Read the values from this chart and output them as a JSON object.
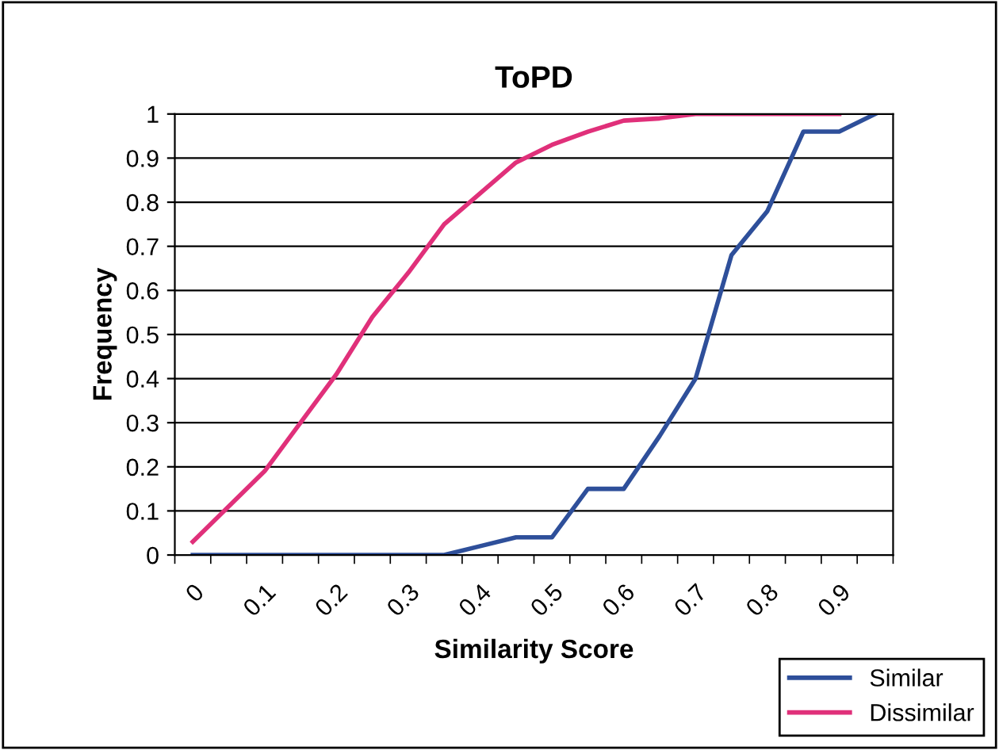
{
  "chart_data": {
    "type": "line",
    "title": "ToPD",
    "xlabel": "Similarity Score",
    "ylabel": "Frequency",
    "categories": [
      "0",
      null,
      "0.1",
      null,
      "0.2",
      null,
      "0.3",
      null,
      "0.4",
      null,
      "0.5",
      null,
      "0.6",
      null,
      "0.7",
      null,
      "0.8",
      null,
      "0.9",
      null
    ],
    "series": [
      {
        "name": "Similar",
        "color": "#2e4f9a",
        "values": [
          0,
          0,
          0,
          0,
          0,
          0,
          0,
          0,
          0.02,
          0.04,
          0.04,
          0.15,
          0.15,
          0.27,
          0.4,
          0.68,
          0.78,
          0.96,
          0.96,
          1.0
        ]
      },
      {
        "name": "Dissimilar",
        "color": "#e0307a",
        "values": [
          0.03,
          0.11,
          0.19,
          0.3,
          0.41,
          0.54,
          0.64,
          0.75,
          0.82,
          0.89,
          0.93,
          0.96,
          0.985,
          0.99,
          1.0,
          1.0,
          1.0,
          1.0,
          1.0,
          null
        ]
      }
    ],
    "ylim": [
      0,
      1
    ],
    "yticks": [
      0,
      0.1,
      0.2,
      0.3,
      0.4,
      0.5,
      0.6,
      0.7,
      0.8,
      0.9,
      1
    ],
    "grid": "y",
    "legend": "bottom right",
    "marker": "none",
    "line_style": "solid"
  }
}
